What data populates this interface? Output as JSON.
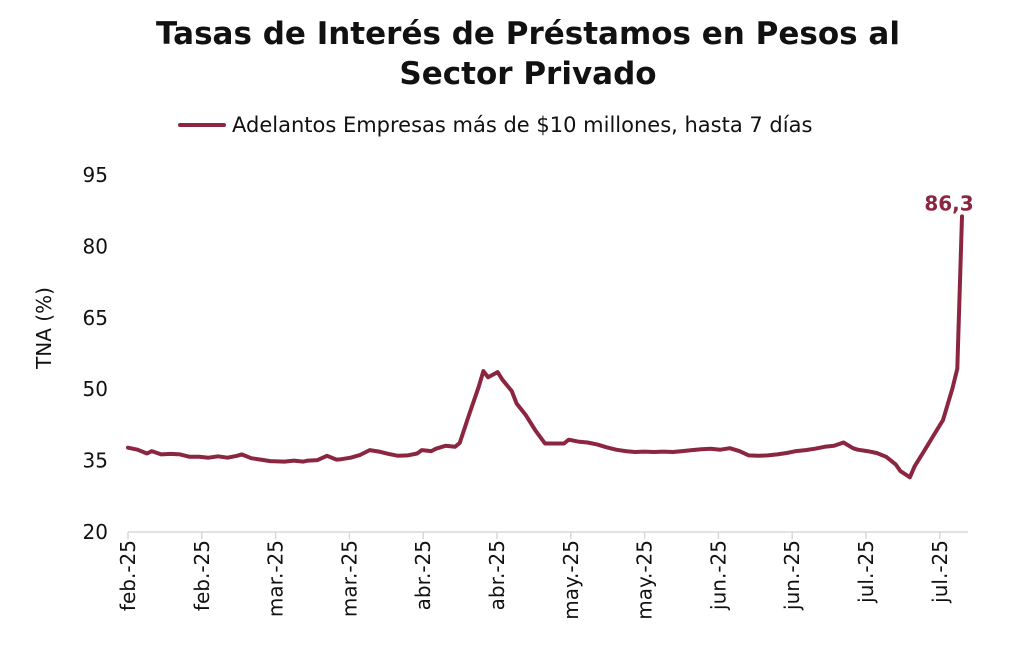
{
  "chart_data": {
    "type": "line",
    "title_lines": [
      "Tasas de Interés de Préstamos en Pesos al",
      "Sector Privado"
    ],
    "ylabel": "TNA (%)",
    "ylim": [
      20,
      95
    ],
    "yticks": [
      "20",
      "35",
      "50",
      "65",
      "80",
      "95"
    ],
    "ytick_values": [
      20,
      35,
      50,
      65,
      80,
      95
    ],
    "xtick_labels": [
      "feb.-25",
      "feb.-25",
      "mar.-25",
      "mar.-25",
      "abr.-25",
      "abr.-25",
      "may.-25",
      "may.-25",
      "jun.-25",
      "jun.-25",
      "jul.-25",
      "jul.-25"
    ],
    "series": [
      {
        "name": "Adelantos Empresas más de $10 millones, hasta 7 días",
        "color": "#8b2641",
        "x": [
          0,
          2,
          4,
          5,
          7,
          9,
          11,
          13,
          15,
          17,
          19,
          21,
          23,
          24,
          26,
          28,
          30,
          33,
          35,
          37,
          38,
          40,
          42,
          44,
          45,
          47,
          49,
          51,
          53,
          55,
          57,
          59,
          61,
          62,
          64,
          65,
          67,
          69,
          70,
          72,
          74,
          75,
          76,
          78,
          79,
          81,
          82,
          84,
          86,
          88,
          90,
          92,
          93,
          95,
          97,
          99,
          101,
          103,
          105,
          107,
          109,
          111,
          113,
          115,
          117,
          119,
          121,
          123,
          125,
          127,
          129,
          131,
          133,
          135,
          137,
          139,
          141,
          143,
          145,
          147,
          149,
          151,
          153,
          154,
          156,
          158,
          160,
          162,
          163,
          165,
          166,
          168,
          170,
          172,
          174,
          175,
          176
        ],
        "y": [
          37.7,
          37.3,
          36.5,
          37.0,
          36.3,
          36.4,
          36.3,
          35.8,
          35.8,
          35.6,
          35.9,
          35.6,
          36.0,
          36.3,
          35.5,
          35.2,
          34.9,
          34.8,
          35.0,
          34.8,
          35.0,
          35.1,
          36.0,
          35.2,
          35.3,
          35.6,
          36.2,
          37.2,
          36.9,
          36.4,
          36.0,
          36.1,
          36.5,
          37.2,
          37.0,
          37.5,
          38.1,
          37.9,
          38.7,
          44.7,
          50.5,
          53.8,
          52.5,
          53.6,
          52.0,
          49.6,
          47.0,
          44.5,
          41.3,
          38.6,
          38.6,
          38.6,
          39.4,
          39.0,
          38.8,
          38.4,
          37.8,
          37.3,
          37.0,
          36.8,
          36.9,
          36.8,
          36.9,
          36.8,
          37.0,
          37.2,
          37.4,
          37.5,
          37.3,
          37.6,
          37.0,
          36.1,
          36.0,
          36.1,
          36.3,
          36.6,
          37.0,
          37.2,
          37.5,
          37.9,
          38.1,
          38.8,
          37.6,
          37.3,
          37.0,
          36.6,
          35.8,
          34.2,
          32.8,
          31.5,
          33.8,
          37.0,
          40.3,
          43.5,
          50.2,
          54.3,
          86.3
        ]
      }
    ],
    "last_value_label": "86,3"
  },
  "legend": {
    "label": "Adelantos Empresas más de $10 millones, hasta 7 días"
  }
}
